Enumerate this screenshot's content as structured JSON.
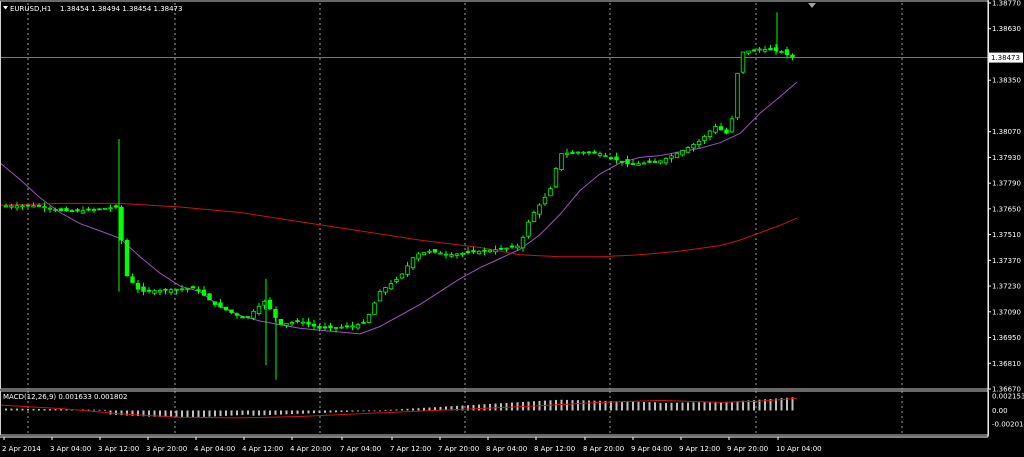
{
  "main_header": {
    "symbol": "EURUSD,H1",
    "ohlc": "1.38454 1.38494 1.38454 1.38473"
  },
  "macd_header": "MACD(12,26,9) 0.001633 0.001802",
  "current_price_label": "1.38473",
  "colors": {
    "background": "#000000",
    "candle": "#00ff00",
    "ma_fast": "#a050c0",
    "ma_slow": "#c81414",
    "macd_hist": "#c0c0c0",
    "macd_signal": "#c81414",
    "grid": "#c8c8c8",
    "axis": "#ffffff"
  },
  "chart_data": [
    {
      "type": "candlestick",
      "title": "EURUSD,H1",
      "xlabel": "",
      "ylabel": "",
      "y_ticks": [
        "1.38770",
        "1.38630",
        "1.38473",
        "1.38350",
        "1.38070",
        "1.37930",
        "1.37790",
        "1.37650",
        "1.37510",
        "1.37370",
        "1.37230",
        "1.37090",
        "1.36950",
        "1.36810",
        "1.36670"
      ],
      "x_ticks": [
        "2 Apr 2014",
        "3 Apr 04:00",
        "3 Apr 12:00",
        "3 Apr 20:00",
        "4 Apr 04:00",
        "4 Apr 12:00",
        "4 Apr 20:00",
        "7 Apr 04:00",
        "7 Apr 12:00",
        "7 Apr 20:00",
        "8 Apr 04:00",
        "8 Apr 12:00",
        "8 Apr 20:00",
        "9 Apr 04:00",
        "9 Apr 12:00",
        "9 Apr 20:00",
        "10 Apr 04:00"
      ],
      "ylim": [
        1.3667,
        1.3877
      ],
      "current_price": 1.38473,
      "series": [
        {
          "name": "",
          "kind": "ma",
          "values": [
            [
              0,
              1.379
            ],
            [
              20,
              1.3781
            ],
            [
              40,
              1.3771
            ],
            [
              60,
              1.3763
            ],
            [
              80,
              1.3757
            ],
            [
              100,
              1.3753
            ],
            [
              120,
              1.3749
            ],
            [
              140,
              1.3739
            ],
            [
              160,
              1.373
            ],
            [
              180,
              1.3723
            ],
            [
              200,
              1.372
            ],
            [
              220,
              1.3712
            ],
            [
              240,
              1.3707
            ],
            [
              260,
              1.3704
            ],
            [
              280,
              1.3702
            ],
            [
              300,
              1.37
            ],
            [
              320,
              1.3699
            ],
            [
              340,
              1.3698
            ],
            [
              360,
              1.3697
            ],
            [
              380,
              1.3701
            ],
            [
              400,
              1.3707
            ],
            [
              420,
              1.3713
            ],
            [
              440,
              1.372
            ],
            [
              460,
              1.3727
            ],
            [
              480,
              1.3733
            ],
            [
              500,
              1.3738
            ],
            [
              520,
              1.3743
            ],
            [
              540,
              1.3751
            ],
            [
              560,
              1.3762
            ],
            [
              580,
              1.3775
            ],
            [
              600,
              1.3784
            ],
            [
              620,
              1.379
            ],
            [
              640,
              1.3793
            ],
            [
              660,
              1.3794
            ],
            [
              680,
              1.3796
            ],
            [
              700,
              1.3798
            ],
            [
              720,
              1.3801
            ],
            [
              740,
              1.3806
            ],
            [
              760,
              1.3817
            ],
            [
              780,
              1.3826
            ],
            [
              797,
              1.3834
            ]
          ]
        },
        {
          "name": "",
          "kind": "ma",
          "values": [
            [
              0,
              1.3767
            ],
            [
              60,
              1.3768
            ],
            [
              120,
              1.3768
            ],
            [
              180,
              1.3766
            ],
            [
              240,
              1.3763
            ],
            [
              300,
              1.3758
            ],
            [
              360,
              1.3753
            ],
            [
              420,
              1.3748
            ],
            [
              480,
              1.3744
            ],
            [
              520,
              1.374
            ],
            [
              560,
              1.3739
            ],
            [
              600,
              1.3739
            ],
            [
              640,
              1.374
            ],
            [
              680,
              1.3742
            ],
            [
              720,
              1.3745
            ],
            [
              740,
              1.3748
            ],
            [
              760,
              1.3752
            ],
            [
              780,
              1.3756
            ],
            [
              797,
              1.376
            ]
          ]
        }
      ]
    },
    {
      "type": "histogram",
      "title": "MACD(12,26,9)",
      "y_ticks": [
        "0.002153",
        "0.00",
        "-0.002014"
      ],
      "ylim": [
        -0.002014,
        0.002153
      ],
      "signal_line": [
        [
          0,
          0.0008
        ],
        [
          60,
          0.0003
        ],
        [
          120,
          -0.0005
        ],
        [
          180,
          -0.001
        ],
        [
          240,
          -0.0011
        ],
        [
          300,
          -0.0009
        ],
        [
          360,
          -0.0005
        ],
        [
          420,
          -0.0001
        ],
        [
          480,
          0.0003
        ],
        [
          540,
          0.0007
        ],
        [
          600,
          0.0012
        ],
        [
          660,
          0.0015
        ],
        [
          720,
          0.0012
        ],
        [
          760,
          0.0014
        ],
        [
          797,
          0.0018
        ]
      ]
    }
  ]
}
